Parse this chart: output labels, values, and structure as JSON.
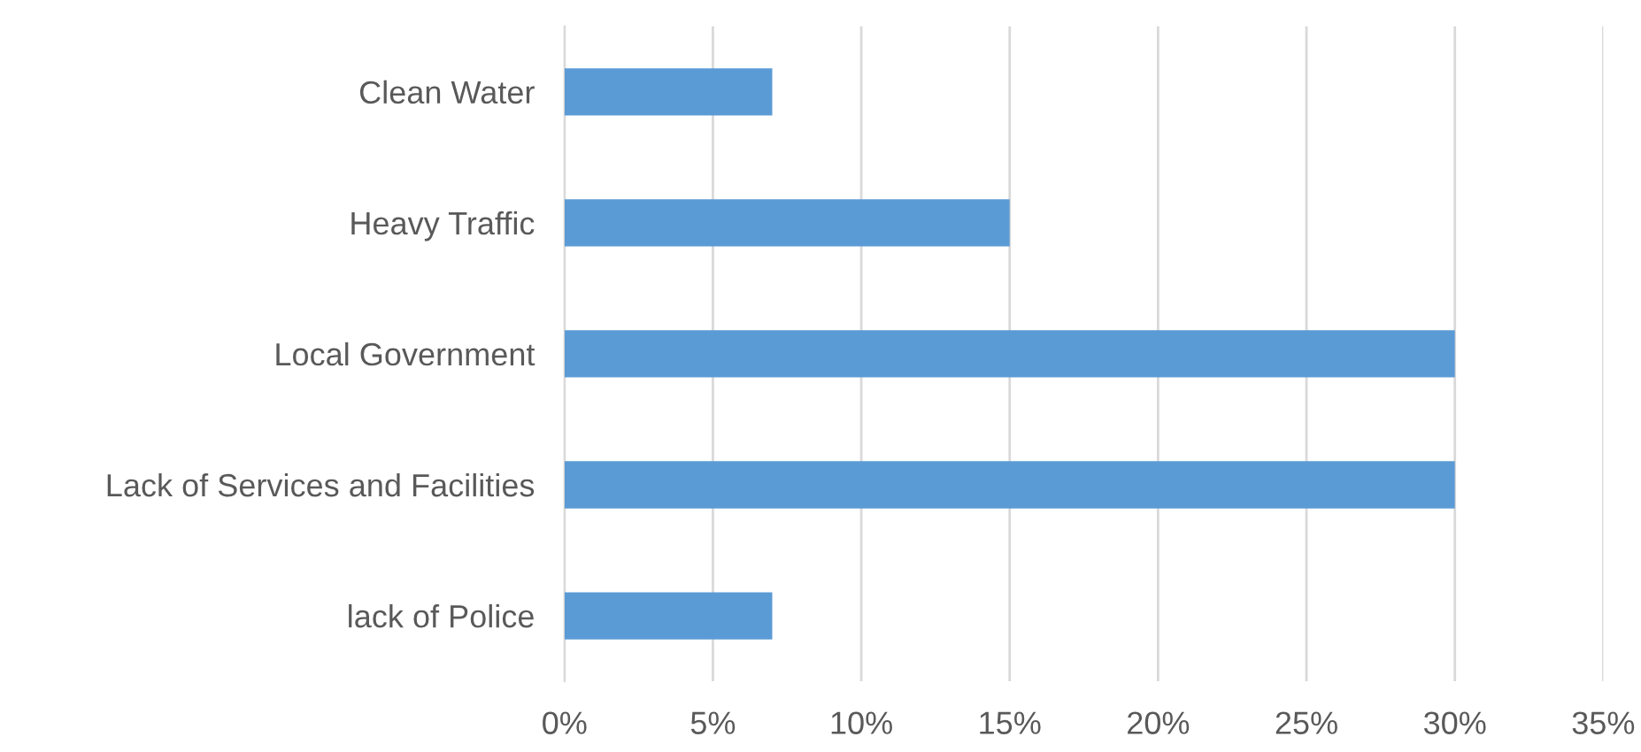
{
  "chart_data": {
    "type": "bar",
    "orientation": "horizontal",
    "categories": [
      "Clean Water",
      "Heavy Traffic",
      "Local Government",
      "Lack of Services and Facilities",
      "lack of Police"
    ],
    "values": [
      7,
      15,
      30,
      30,
      7
    ],
    "color": "#5b9bd5",
    "xlim": [
      0,
      35
    ],
    "xticks": [
      {
        "value": 0,
        "label": "0%"
      },
      {
        "value": 5,
        "label": "5%"
      },
      {
        "value": 10,
        "label": "10%"
      },
      {
        "value": 15,
        "label": "15%"
      },
      {
        "value": 20,
        "label": "20%"
      },
      {
        "value": 25,
        "label": "25%"
      },
      {
        "value": 30,
        "label": "30%"
      },
      {
        "value": 35,
        "label": "35%"
      }
    ],
    "grid": "x",
    "legend": false
  }
}
